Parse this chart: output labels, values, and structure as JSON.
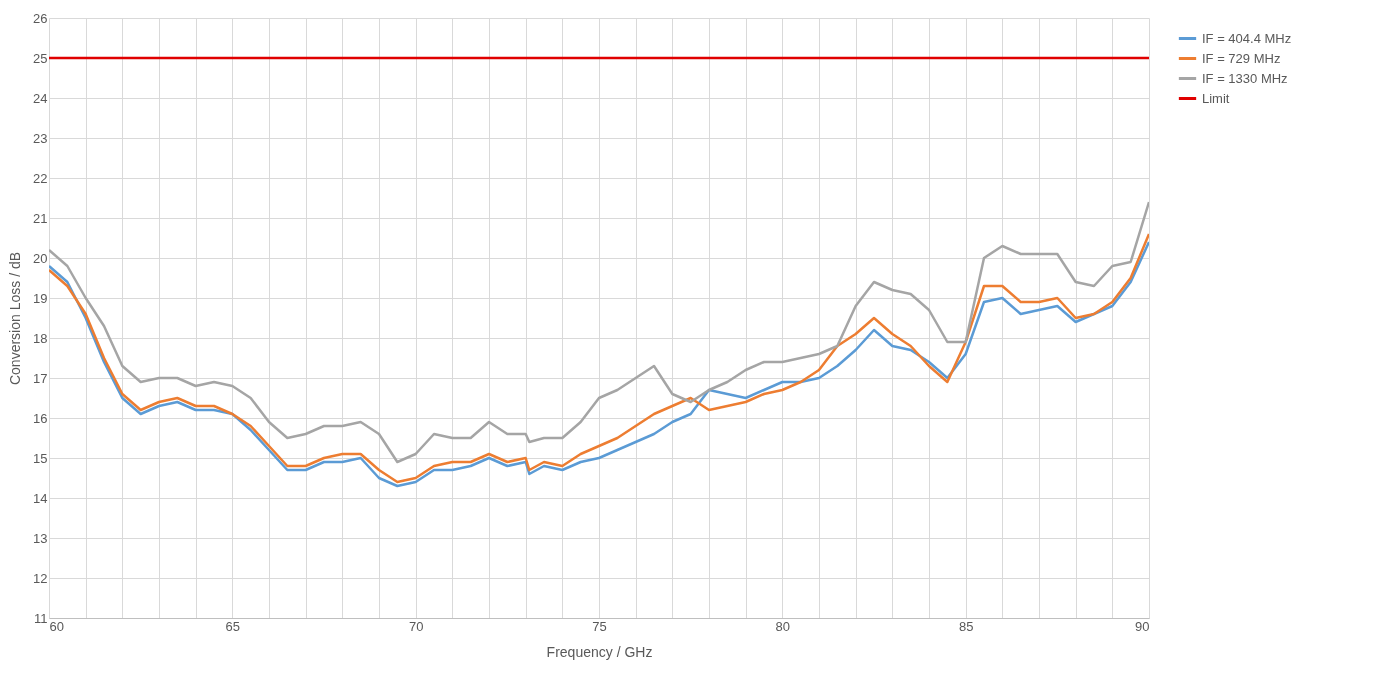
{
  "chart_data": {
    "type": "line",
    "xlabel": "Frequency / GHz",
    "ylabel": "Conversion Loss / dB",
    "xlim": [
      60,
      90
    ],
    "ylim": [
      11,
      26
    ],
    "xticks": [
      60,
      {
        "value": 61,
        "label": null
      },
      {
        "value": 62,
        "label": null
      },
      {
        "value": 63,
        "label": null
      },
      {
        "value": 64,
        "label": null
      },
      65,
      {
        "value": 66,
        "label": null
      },
      {
        "value": 67,
        "label": null
      },
      {
        "value": 68,
        "label": null
      },
      {
        "value": 69,
        "label": null
      },
      70,
      {
        "value": 71,
        "label": null
      },
      {
        "value": 72,
        "label": null
      },
      {
        "value": 73,
        "label": null
      },
      {
        "value": 74,
        "label": null
      },
      75,
      {
        "value": 76,
        "label": null
      },
      {
        "value": 77,
        "label": null
      },
      {
        "value": 78,
        "label": null
      },
      {
        "value": 79,
        "label": null
      },
      80,
      {
        "value": 81,
        "label": null
      },
      {
        "value": 82,
        "label": null
      },
      {
        "value": 83,
        "label": null
      },
      {
        "value": 84,
        "label": null
      },
      85,
      {
        "value": 86,
        "label": null
      },
      {
        "value": 87,
        "label": null
      },
      {
        "value": 88,
        "label": null
      },
      {
        "value": 89,
        "label": null
      },
      90
    ],
    "yticks": [
      11,
      12,
      13,
      14,
      15,
      16,
      17,
      18,
      19,
      20,
      21,
      22,
      23,
      24,
      25,
      26
    ],
    "grid": true,
    "legend": "right",
    "marker": "none",
    "line_style": "solid",
    "x": [
      60,
      60.5,
      61,
      61.5,
      62,
      62.5,
      63,
      63.5,
      64,
      64.5,
      65,
      65.5,
      66,
      66.5,
      67,
      67.5,
      68,
      68.5,
      69,
      69.5,
      70,
      70.5,
      71,
      71.5,
      72,
      72.5,
      73,
      73.1,
      73.5,
      74,
      74.5,
      75,
      75.5,
      76,
      76.5,
      77,
      77.5,
      78,
      78.5,
      79,
      79.5,
      80,
      80.5,
      81,
      81.5,
      82,
      82.5,
      83,
      83.5,
      84,
      84.5,
      85,
      85.5,
      86,
      86.5,
      87,
      87.5,
      88,
      88.5,
      89,
      89.5,
      90
    ],
    "series": [
      {
        "name": "IF = 404.4 MHz",
        "color": "#5b9bd5",
        "values": [
          19.8,
          19.4,
          18.5,
          17.4,
          16.5,
          16.1,
          16.3,
          16.4,
          16.2,
          16.2,
          16.1,
          15.7,
          15.2,
          14.7,
          14.7,
          14.9,
          14.9,
          15.0,
          14.5,
          14.3,
          14.4,
          14.7,
          14.7,
          14.8,
          15.0,
          14.8,
          14.9,
          14.6,
          14.8,
          14.7,
          14.9,
          15.0,
          15.2,
          15.4,
          15.6,
          15.9,
          16.1,
          16.7,
          16.6,
          16.5,
          16.7,
          16.9,
          16.9,
          17.0,
          17.3,
          17.7,
          18.2,
          17.8,
          17.7,
          17.4,
          17.0,
          17.6,
          18.9,
          19.0,
          18.6,
          18.7,
          18.8,
          18.4,
          18.6,
          18.8,
          19.4,
          20.4
        ]
      },
      {
        "name": "IF = 729 MHz",
        "color": "#ed7d31",
        "values": [
          19.7,
          19.3,
          18.6,
          17.5,
          16.6,
          16.2,
          16.4,
          16.5,
          16.3,
          16.3,
          16.1,
          15.8,
          15.3,
          14.8,
          14.8,
          15.0,
          15.1,
          15.1,
          14.7,
          14.4,
          14.5,
          14.8,
          14.9,
          14.9,
          15.1,
          14.9,
          15.0,
          14.7,
          14.9,
          14.8,
          15.1,
          15.3,
          15.5,
          15.8,
          16.1,
          16.3,
          16.5,
          16.2,
          16.3,
          16.4,
          16.6,
          16.7,
          16.9,
          17.2,
          17.8,
          18.1,
          18.5,
          18.1,
          17.8,
          17.3,
          16.9,
          17.9,
          19.3,
          19.3,
          18.9,
          18.9,
          19.0,
          18.5,
          18.6,
          18.9,
          19.5,
          20.6
        ]
      },
      {
        "name": "IF = 1330 MHz",
        "color": "#a5a5a5",
        "values": [
          20.2,
          19.8,
          19.0,
          18.3,
          17.3,
          16.9,
          17.0,
          17.0,
          16.8,
          16.9,
          16.8,
          16.5,
          15.9,
          15.5,
          15.6,
          15.8,
          15.8,
          15.9,
          15.6,
          14.9,
          15.1,
          15.6,
          15.5,
          15.5,
          15.9,
          15.6,
          15.6,
          15.4,
          15.5,
          15.5,
          15.9,
          16.5,
          16.7,
          17.0,
          17.3,
          16.6,
          16.4,
          16.7,
          16.9,
          17.2,
          17.4,
          17.4,
          17.5,
          17.6,
          17.8,
          18.8,
          19.4,
          19.2,
          19.1,
          18.7,
          17.9,
          17.9,
          20.0,
          20.3,
          20.1,
          20.1,
          20.1,
          19.4,
          19.3,
          19.8,
          19.9,
          21.4
        ]
      },
      {
        "name": "Limit",
        "color": "#e00000",
        "x": [
          60,
          90
        ],
        "values": [
          25,
          25
        ]
      }
    ]
  }
}
